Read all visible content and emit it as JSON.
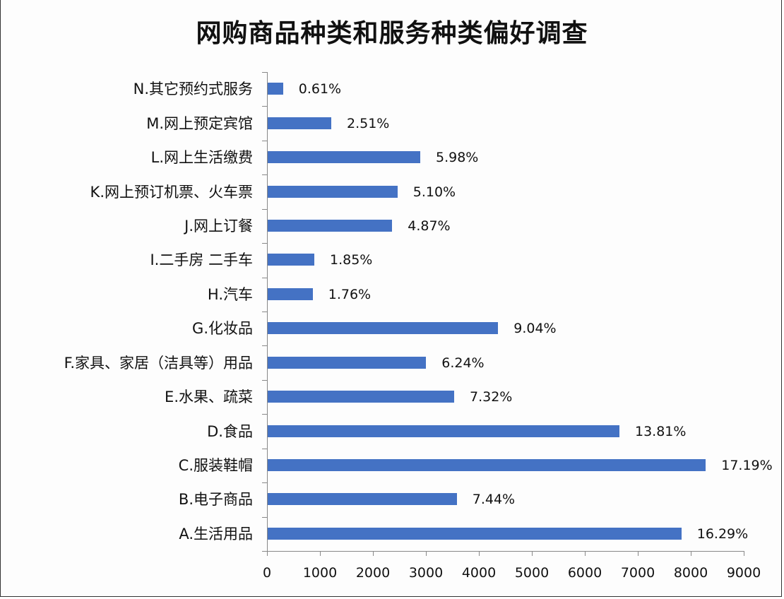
{
  "chart_data": {
    "type": "bar",
    "orientation": "horizontal",
    "title": "网购商品种类和服务种类偏好调查",
    "xlabel": "",
    "ylabel": "",
    "xlim": [
      0,
      9000
    ],
    "x_ticks": [
      "0",
      "1000",
      "2000",
      "3000",
      "4000",
      "5000",
      "6000",
      "7000",
      "8000",
      "9000"
    ],
    "grid": false,
    "legend": null,
    "bar_color": "#4472C4",
    "categories": [
      "N.其它预约式服务",
      "M.网上预定宾馆",
      "L.网上生活缴费",
      "K.网上预订机票、火车票",
      "J.网上订餐",
      "I.二手房 二手车",
      "H.汽车",
      "G.化妆品",
      "F.家具、家居（洁具等）用品",
      "E.水果、疏菜",
      "D.食品",
      "C.服装鞋帽",
      "B.电子商品",
      "A.生活用品"
    ],
    "values": [
      290,
      1200,
      2880,
      2450,
      2350,
      880,
      850,
      4350,
      2990,
      3520,
      6640,
      8270,
      3570,
      7810
    ],
    "data_labels": [
      "0.61%",
      "2.51%",
      "5.98%",
      "5.10%",
      "4.87%",
      "1.85%",
      "1.76%",
      "9.04%",
      "6.24%",
      "7.32%",
      "13.81%",
      "17.19%",
      "7.44%",
      "16.29%"
    ]
  }
}
